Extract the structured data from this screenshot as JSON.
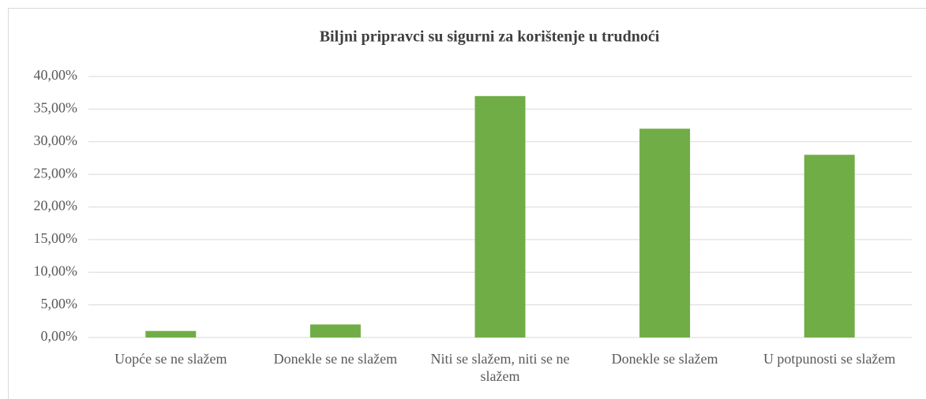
{
  "chart_data": {
    "type": "bar",
    "title": "Biljni pripravci su sigurni za korištenje u trudnoći",
    "categories": [
      "Uopće se ne slažem",
      "Donekle se ne slažem",
      "Niti se slažem, niti se ne slažem",
      "Donekle se slažem",
      "U potpunosti se slažem"
    ],
    "values": [
      1,
      2,
      37,
      32,
      28
    ],
    "color": "#70ad47",
    "ylim": [
      0,
      40
    ],
    "yticks": [
      {
        "value": 0,
        "label": "0,00%"
      },
      {
        "value": 5,
        "label": "5,00%"
      },
      {
        "value": 10,
        "label": "10,00%"
      },
      {
        "value": 15,
        "label": "15,00%"
      },
      {
        "value": 20,
        "label": "20,00%"
      },
      {
        "value": 25,
        "label": "25,00%"
      },
      {
        "value": 30,
        "label": "30,00%"
      },
      {
        "value": 35,
        "label": "35,00%"
      },
      {
        "value": 40,
        "label": "40,00%"
      }
    ],
    "grid": true
  }
}
